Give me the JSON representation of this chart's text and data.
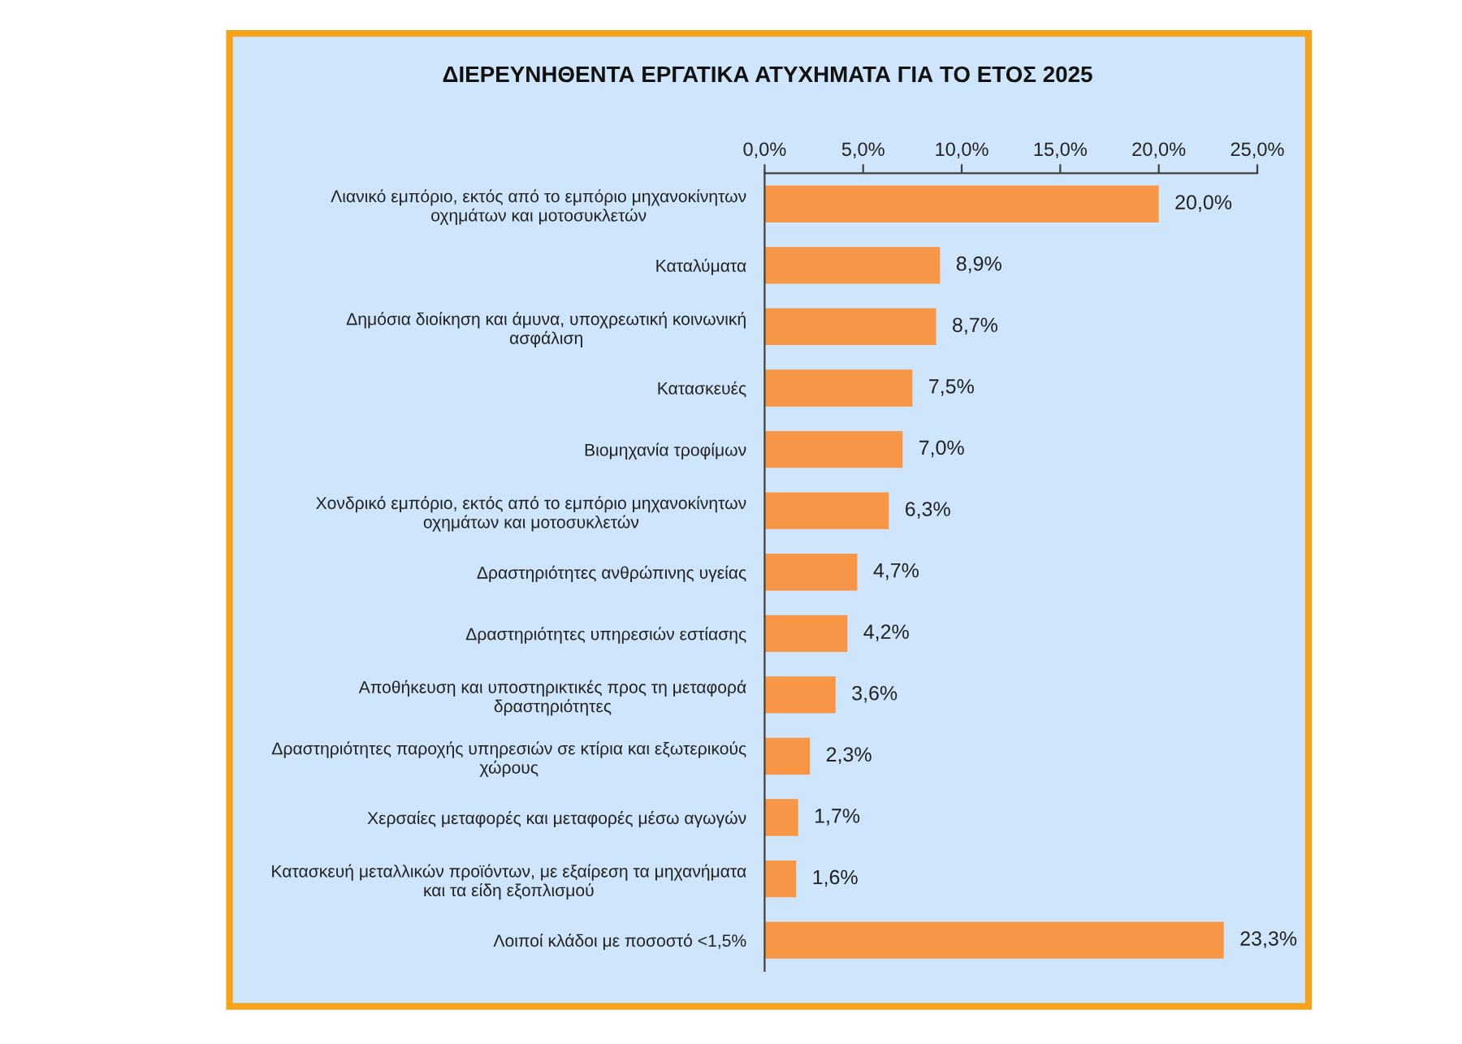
{
  "chart_data": {
    "type": "bar",
    "orientation": "horizontal",
    "title": "ΔΙΕΡΕΥΝΗΘΕΝΤΑ ΕΡΓΑΤΙΚΑ ΑΤΥΧΗΜΑΤΑ ΓΙΑ ΤΟ ΕΤΟΣ 2025",
    "categories": [
      "Λιανικό εμπόριο, εκτός από το εμπόριο μηχανοκίνητων\nοχημάτων και μοτοσυκλετών",
      "Καταλύματα",
      "Δημόσια διοίκηση και άμυνα, υποχρεωτική κοινωνική\nασφάλιση",
      "Κατασκευές",
      "Βιομηχανία τροφίμων",
      "Χονδρικό εμπόριο, εκτός από το εμπόριο μηχανοκίνητων\nοχημάτων και μοτοσυκλετών",
      "Δραστηριότητες ανθρώπινης υγείας",
      "Δραστηριότητες υπηρεσιών εστίασης",
      "Αποθήκευση και υποστηρικτικές προς τη μεταφορά\nδραστηριότητες",
      "Δραστηριότητες παροχής υπηρεσιών σε κτίρια και εξωτερικούς\nχώρους",
      "Χερσαίες μεταφορές και μεταφορές μέσω αγωγών",
      "Κατασκευή μεταλλικών προϊόντων, με εξαίρεση τα μηχανήματα\nκαι τα είδη εξοπλισμού",
      "Λοιποί κλάδοι με ποσοστό <1,5%"
    ],
    "values": [
      20.0,
      8.9,
      8.7,
      7.5,
      7.0,
      6.3,
      4.7,
      4.2,
      3.6,
      2.3,
      1.7,
      1.6,
      23.3
    ],
    "value_labels": [
      "20,0%",
      "8,9%",
      "8,7%",
      "7,5%",
      "7,0%",
      "6,3%",
      "4,7%",
      "4,2%",
      "3,6%",
      "2,3%",
      "1,7%",
      "1,6%",
      "23,3%"
    ],
    "color": "#f79646",
    "xlim": [
      0,
      25
    ],
    "xticks": [
      {
        "value": 0,
        "label": "0,0%"
      },
      {
        "value": 5,
        "label": "5,0%"
      },
      {
        "value": 10,
        "label": "10,0%"
      },
      {
        "value": 15,
        "label": "15,0%"
      },
      {
        "value": 20,
        "label": "20,0%"
      },
      {
        "value": 25,
        "label": "25,0%"
      }
    ],
    "grid": false
  }
}
